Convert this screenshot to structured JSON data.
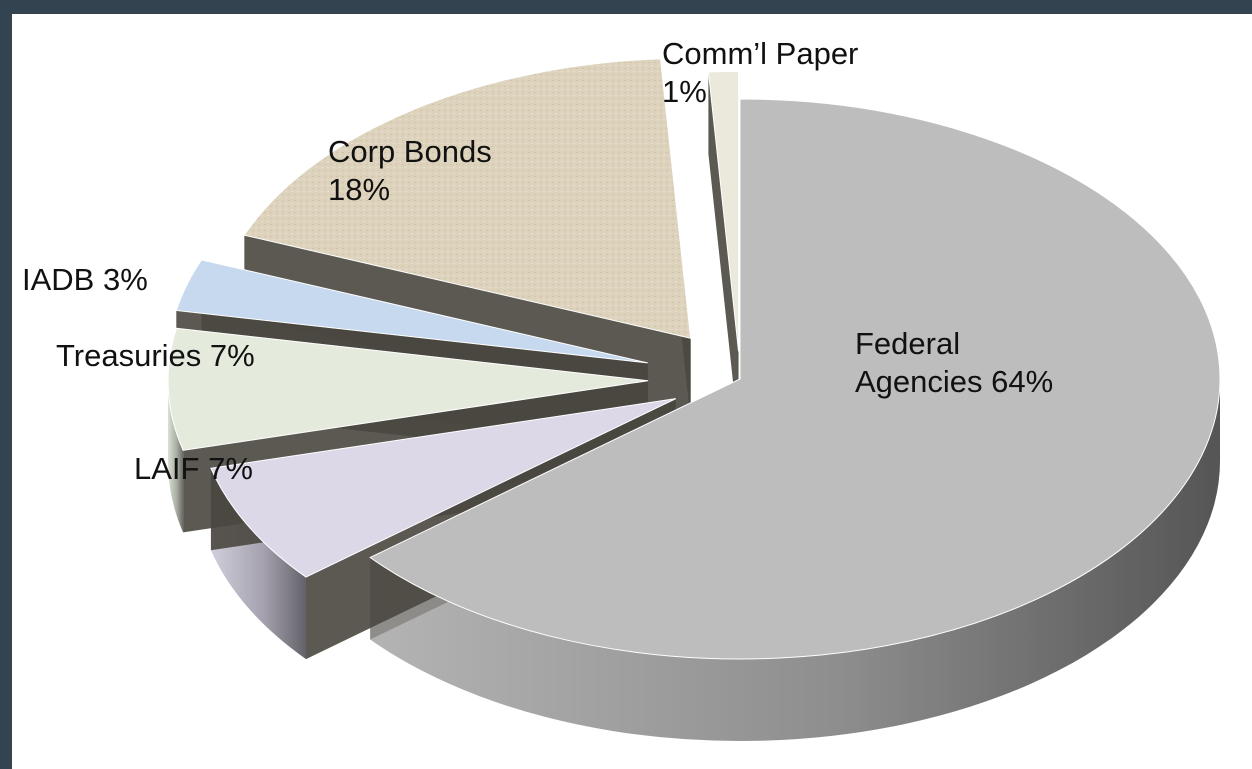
{
  "chart_data": {
    "type": "pie",
    "title": "",
    "slices": [
      {
        "key": "federal",
        "label_lines": [
          "Federal",
          "Agencies 64%"
        ],
        "value": 64,
        "color": "#bdbdbd"
      },
      {
        "key": "laif",
        "label_lines": [
          "LAIF 7%"
        ],
        "value": 7,
        "color": "#dcd8e8"
      },
      {
        "key": "treasuries",
        "label_lines": [
          "Treasuries 7%"
        ],
        "value": 7,
        "color": "#e5ebdc"
      },
      {
        "key": "iadb",
        "label_lines": [
          "IADB 3%"
        ],
        "value": 3,
        "color": "#c6d9ef"
      },
      {
        "key": "corp",
        "label_lines": [
          "Corp Bonds",
          "18%"
        ],
        "value": 18,
        "color": "#ddd3bd"
      },
      {
        "key": "comm",
        "label_lines": [
          "Comm’l Paper",
          "1%"
        ],
        "value": 1,
        "color": "#ebe8dc"
      }
    ]
  }
}
